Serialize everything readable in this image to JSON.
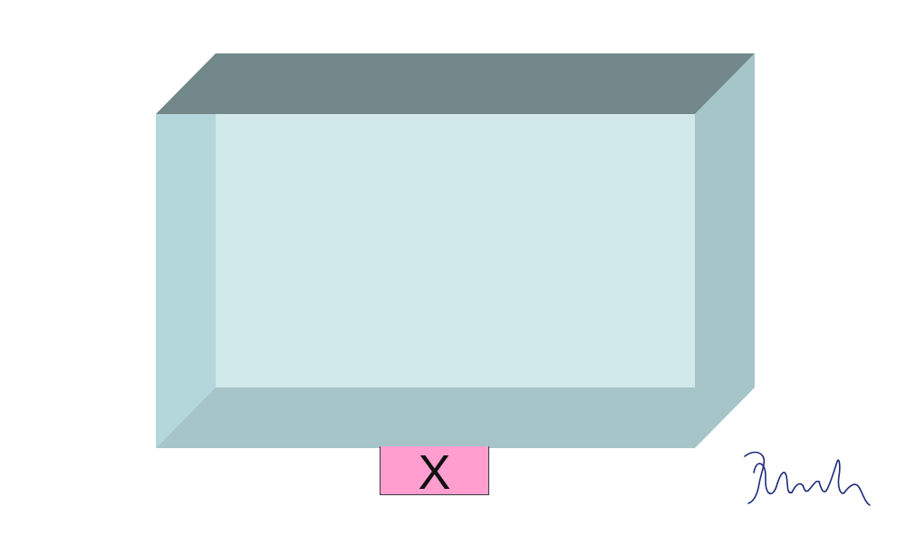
{
  "diagram": {
    "box_label": "X",
    "colors": {
      "top_face": "#728789",
      "left_face": "#b4d7dc",
      "front_face": "#d1e9eb",
      "right_face": "#a6c5c8",
      "bottom_face": "#a6c5c8",
      "label_fill": "#ff9ecf",
      "signature_ink": "#1c2a78"
    },
    "signature_icon": "handwritten-signature-icon"
  }
}
